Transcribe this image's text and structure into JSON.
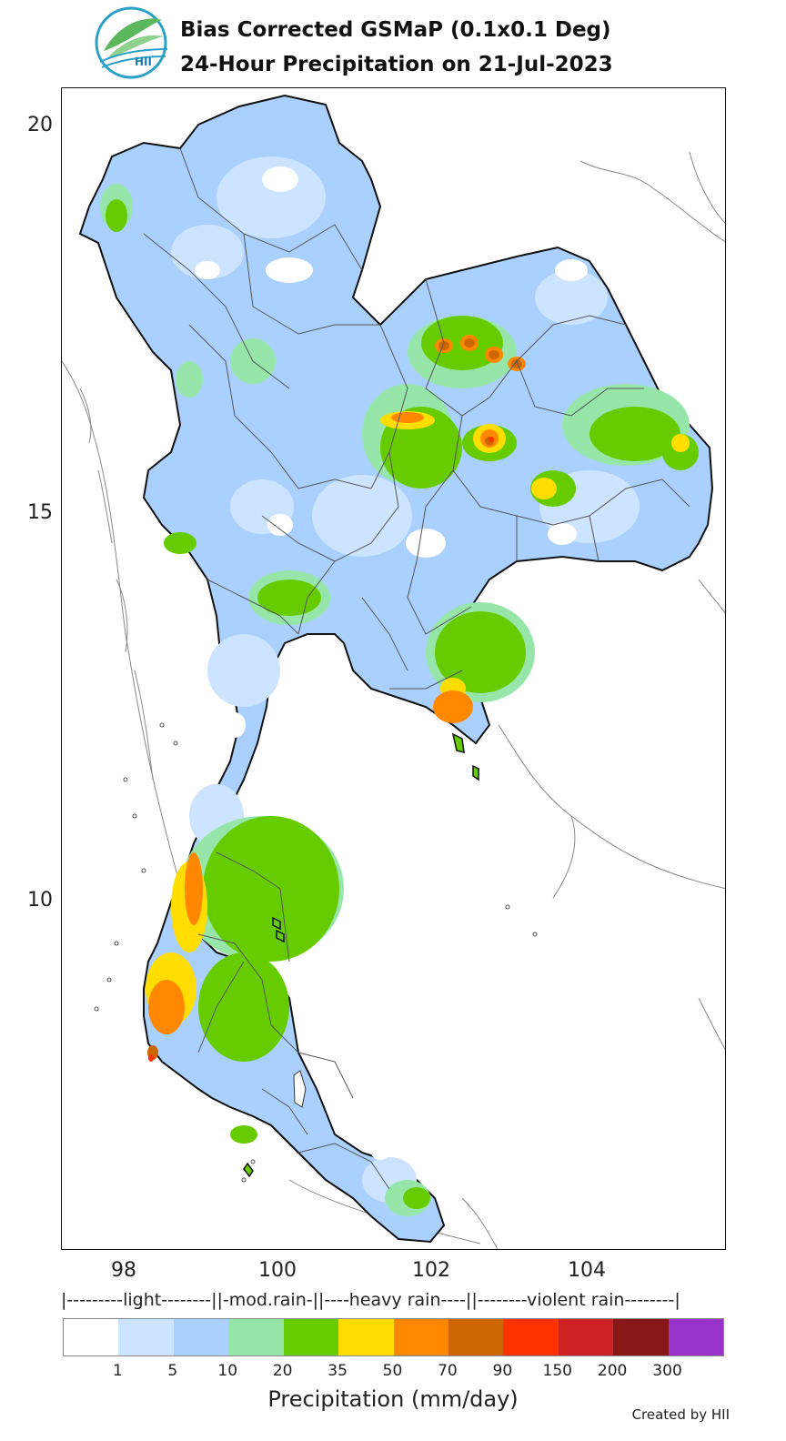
{
  "header": {
    "logo_text": "HII",
    "title_line1": "Bias Corrected GSMaP (0.1x0.1 Deg)",
    "title_line2": "24-Hour Precipitation on 21-Jul-2023"
  },
  "axes": {
    "y_ticks": [
      "20",
      "15",
      "10"
    ],
    "x_ticks": [
      "98",
      "100",
      "102",
      "104"
    ]
  },
  "legend": {
    "category_strip": "|---------light--------||-mod.rain-||----heavy rain----||--------violent rain--------|",
    "colors": [
      "#ffffff",
      "#cce4ff",
      "#aad0ff",
      "#96e6aa",
      "#66cc00",
      "#ffdd00",
      "#ff8800",
      "#cc6600",
      "#ff3300",
      "#cc2222",
      "#881818",
      "#9933cc"
    ],
    "tick_labels": [
      "1",
      "5",
      "10",
      "20",
      "35",
      "50",
      "70",
      "90",
      "150",
      "200",
      "300"
    ],
    "axis_label": "Precipitation (mm/day)"
  },
  "credit": "Created by HII"
}
